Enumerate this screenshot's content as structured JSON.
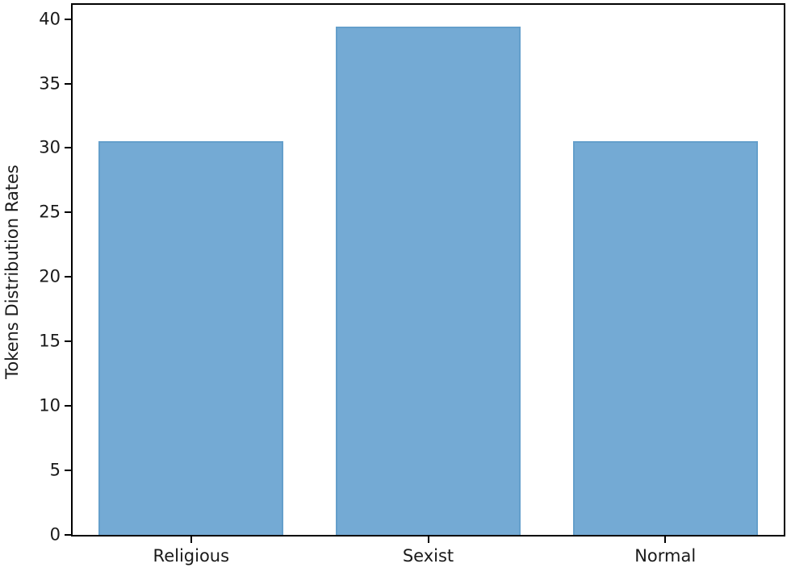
{
  "figure": {
    "background": "#ffffff",
    "axis_color": "#000000",
    "text_color": "#1a1a1a",
    "bar_fill": "#74aad4",
    "bar_edge": "#649fcb"
  },
  "chart_data": {
    "type": "bar",
    "title": "",
    "xlabel": "",
    "ylabel": "Tokens Distribution Rates",
    "categories": [
      "Religious",
      "Sexist",
      "Normal"
    ],
    "values": [
      30.5,
      39.4,
      30.5
    ],
    "yticks": [
      0,
      5,
      10,
      15,
      20,
      25,
      30,
      35,
      40
    ],
    "ylim": [
      0,
      41.1
    ],
    "grid": false,
    "legend_position": "none",
    "bar_width_fraction": 0.78
  }
}
